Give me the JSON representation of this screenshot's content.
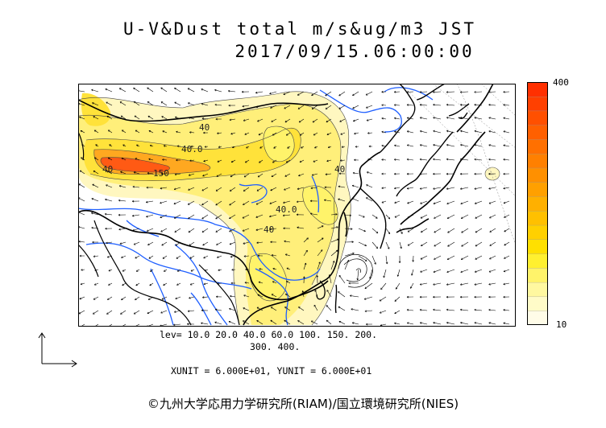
{
  "title": {
    "line1": "U-V&Dust total m/s&ug/m3 JST",
    "line2": "2017/09/15.06:00:00"
  },
  "colorbar": {
    "max_label": "400",
    "min_label": "10",
    "colors": [
      "#fffce8",
      "#fffbc8",
      "#fff8a0",
      "#fff36a",
      "#fff030",
      "#ffe000",
      "#ffd000",
      "#ffc000",
      "#ffb000",
      "#ffa000",
      "#ff9000",
      "#ff8000",
      "#ff7000",
      "#ff6000",
      "#ff5000",
      "#ff4000",
      "#ff3000"
    ]
  },
  "contour_labels": [
    "40",
    "40",
    "40",
    "40",
    "150",
    "40.0",
    "40.0"
  ],
  "levels": {
    "line1": "lev= 10.0 20.0 40.0 60.0 100. 150. 200.",
    "line2": "300. 400."
  },
  "units": "XUNIT = 6.000E+01, YUNIT = 6.000E+01",
  "copyright": "©九州大学応用力学研究所(RIAM)/国立環境研究所(NIES)",
  "colors": {
    "coast": "#000000",
    "river": "#1f5fff",
    "dust_light": "#fff6b0",
    "dust_mid": "#ffe83a",
    "dust_high": "#ff8a10",
    "dust_peak": "#ff3a10"
  }
}
